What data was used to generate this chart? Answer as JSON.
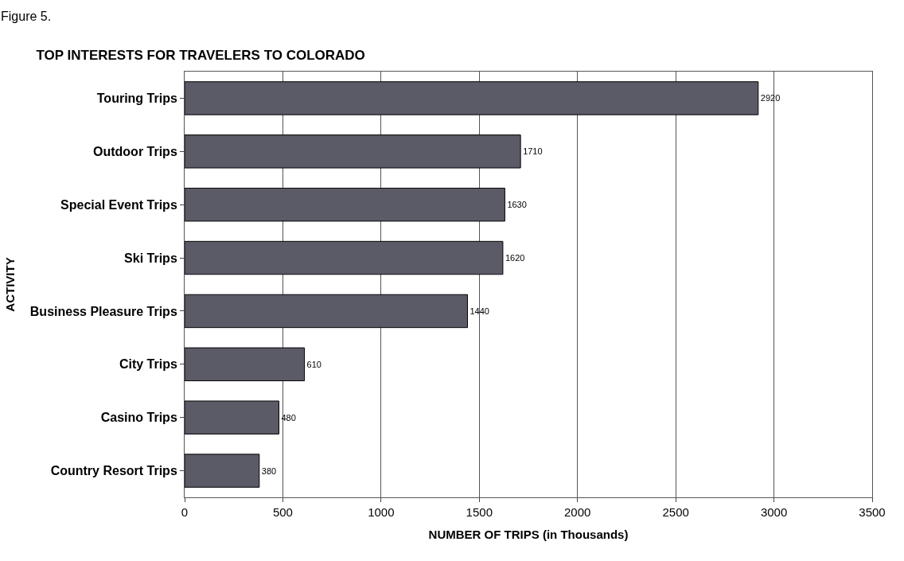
{
  "chart_data": {
    "type": "bar",
    "orientation": "horizontal",
    "title": "TOP INTERESTS FOR TRAVELERS TO COLORADO",
    "xlabel": "NUMBER OF TRIPS (in Thousands)",
    "ylabel": "ACTIVITY",
    "annotations": [
      "Figure 5."
    ],
    "categories": [
      "Touring Trips",
      "Outdoor Trips",
      "Special Event Trips",
      "Ski Trips",
      "Business Pleasure Trips",
      "City Trips",
      "Casino Trips",
      "Country Resort Trips"
    ],
    "values": [
      2920,
      1710,
      1630,
      1620,
      1440,
      610,
      480,
      380
    ],
    "color": "#5b5b68",
    "xlim": [
      0,
      3500
    ],
    "xticks": [
      0,
      500,
      1000,
      1500,
      2000,
      2500,
      3000,
      3500
    ],
    "grid": "x",
    "data_labels": true,
    "legend": false
  }
}
